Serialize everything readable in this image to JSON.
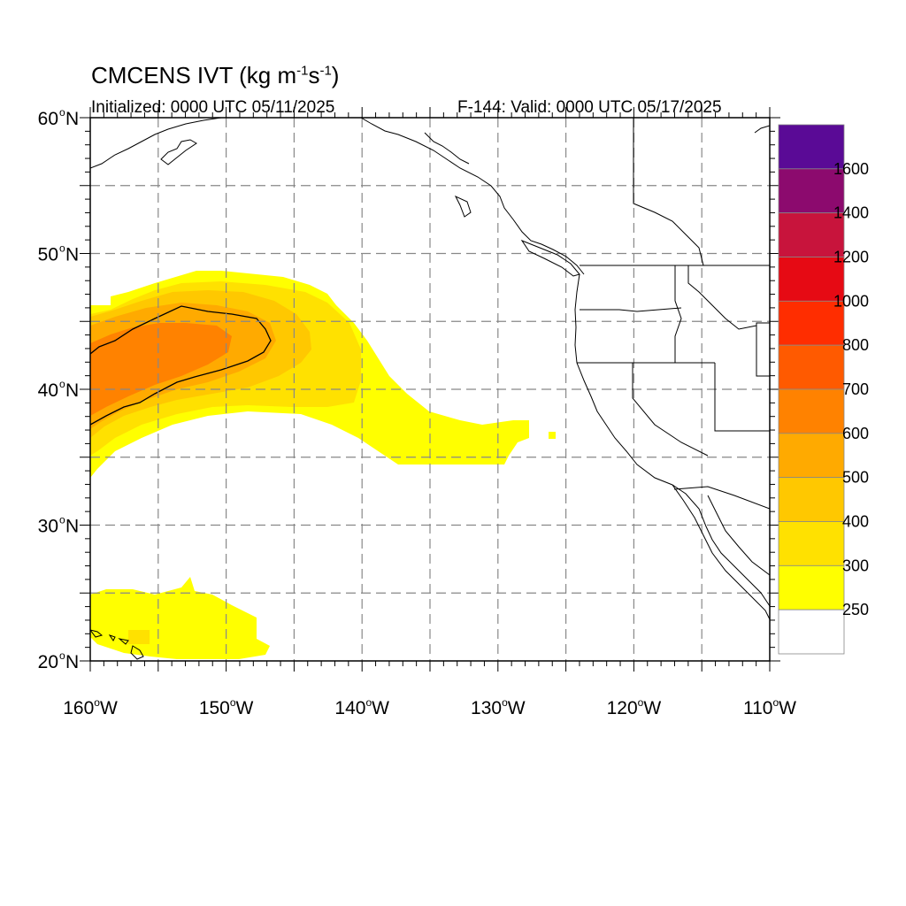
{
  "header": {
    "title_main": "CMCENS IVT (kg m",
    "title_exp1": "-1",
    "title_mid": "s",
    "title_exp2": "-1",
    "title_end": ")",
    "initialized": "Initialized: 0000 UTC 05/11/2025",
    "valid": "F-144: Valid: 0000 UTC 05/17/2025"
  },
  "axes": {
    "lat_labels": [
      {
        "deg": "60",
        "hemi": "N",
        "value": 60
      },
      {
        "deg": "50",
        "hemi": "N",
        "value": 50
      },
      {
        "deg": "40",
        "hemi": "N",
        "value": 40
      },
      {
        "deg": "30",
        "hemi": "N",
        "value": 30
      },
      {
        "deg": "20",
        "hemi": "N",
        "value": 20
      }
    ],
    "lon_labels": [
      {
        "deg": "160",
        "hemi": "W",
        "value": -160
      },
      {
        "deg": "150",
        "hemi": "W",
        "value": -150
      },
      {
        "deg": "140",
        "hemi": "W",
        "value": -140
      },
      {
        "deg": "130",
        "hemi": "W",
        "value": -130
      },
      {
        "deg": "120",
        "hemi": "W",
        "value": -120
      },
      {
        "deg": "110",
        "hemi": "W",
        "value": -110
      }
    ],
    "lon_range": [
      -160,
      -110
    ],
    "lat_range": [
      20,
      60
    ],
    "grid": "dashed every 5 degrees"
  },
  "colorbar": {
    "labels": [
      "1600",
      "1400",
      "1200",
      "1000",
      "800",
      "700",
      "600",
      "500",
      "400",
      "300",
      "250"
    ],
    "colors_top_to_bottom": [
      "#5a0a96",
      "#8c0a6e",
      "#c8143c",
      "#e60a14",
      "#ff2d00",
      "#ff5a00",
      "#ff8200",
      "#ffaa00",
      "#ffc800",
      "#ffe100",
      "#ffff00",
      "#ffffff"
    ]
  },
  "map_data": {
    "field": "IVT",
    "ivt_cells": [
      {
        "lon": [
          -160,
          -146.5
        ],
        "lat": [
          46.5,
          35
        ],
        "level": "250"
      },
      {
        "lon": [
          -155,
          -145
        ],
        "lat": [
          48.5,
          38
        ],
        "level": "300"
      },
      {
        "lon": [
          -145,
          -135
        ],
        "lat": [
          46.5,
          36
        ],
        "level": "250"
      },
      {
        "lon": [
          -138,
          -128
        ],
        "lat": [
          38,
          34.5
        ],
        "level": "250"
      },
      {
        "lon": [
          -160,
          -147
        ],
        "lat": [
          46,
          37
        ],
        "level": "500"
      },
      {
        "lon": [
          -160,
          -150
        ],
        "lat": [
          44,
          38
        ],
        "level": "600"
      },
      {
        "lon": [
          -160,
          -148
        ],
        "lat": [
          25,
          20
        ],
        "level": "250"
      }
    ]
  }
}
